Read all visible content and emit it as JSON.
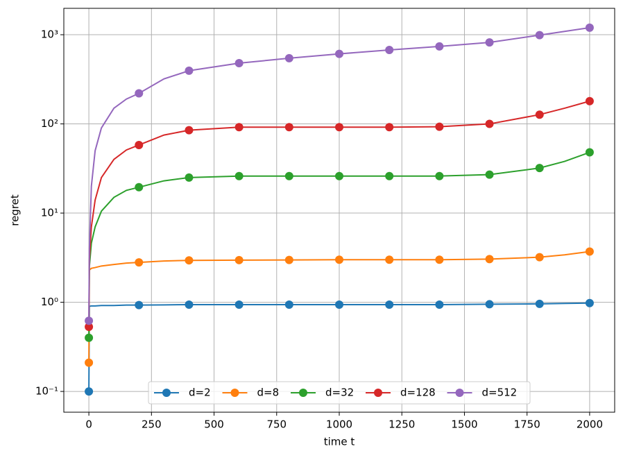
{
  "chart_data": {
    "type": "line",
    "x_label": "time t",
    "y_label": "regret",
    "x": [
      0,
      2,
      10,
      25,
      50,
      100,
      150,
      200,
      300,
      400,
      600,
      800,
      1000,
      1200,
      1400,
      1600,
      1800,
      1900,
      2000
    ],
    "marker_every": 200,
    "series": [
      {
        "name": "d=2",
        "color": "#1f77b4",
        "values": [
          0.1,
          0.9,
          0.91,
          0.91,
          0.92,
          0.92,
          0.93,
          0.93,
          0.935,
          0.94,
          0.94,
          0.94,
          0.94,
          0.94,
          0.94,
          0.95,
          0.96,
          0.97,
          0.98
        ]
      },
      {
        "name": "d=8",
        "color": "#ff7f0e",
        "values": [
          0.21,
          2.3,
          2.4,
          2.45,
          2.55,
          2.65,
          2.75,
          2.8,
          2.9,
          2.95,
          2.97,
          2.98,
          3.0,
          3.0,
          3.0,
          3.05,
          3.2,
          3.4,
          3.7
        ]
      },
      {
        "name": "d=32",
        "color": "#2ca02c",
        "values": [
          0.4,
          2.5,
          4.6,
          7,
          10.5,
          15,
          18,
          19.5,
          23,
          25,
          26,
          26,
          26,
          26,
          26,
          27,
          32,
          38,
          48
        ]
      },
      {
        "name": "d=128",
        "color": "#d62728",
        "values": [
          0.53,
          3,
          7,
          14,
          25,
          40,
          51,
          58,
          75,
          85,
          92,
          92,
          92,
          92,
          93,
          100,
          127,
          150,
          180
        ]
      },
      {
        "name": "d=512",
        "color": "#9467bd",
        "values": [
          0.62,
          4,
          20,
          50,
          90,
          150,
          190,
          220,
          320,
          395,
          480,
          545,
          610,
          675,
          740,
          820,
          990,
          1090,
          1200
        ]
      }
    ],
    "xlim": [
      -100,
      2100
    ],
    "xticks": [
      0,
      250,
      500,
      750,
      1000,
      1250,
      1500,
      1750,
      2000
    ],
    "ylim": [
      0.0585,
      1977
    ],
    "log_y": true,
    "yticks": [
      {
        "value": 0.1,
        "label": "10⁻¹"
      },
      {
        "value": 1,
        "label": "10⁰"
      },
      {
        "value": 10,
        "label": "10¹"
      },
      {
        "value": 100,
        "label": "10²"
      },
      {
        "value": 1000,
        "label": "10³"
      }
    ],
    "grid": true,
    "legend": "lower center"
  }
}
